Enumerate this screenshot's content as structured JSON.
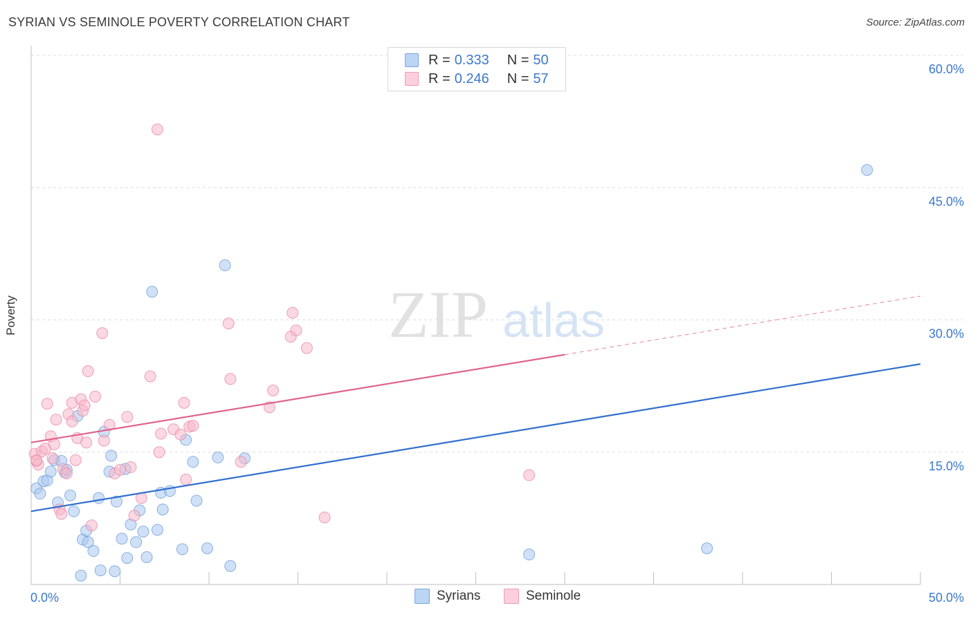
{
  "header": {
    "title": "SYRIAN VS SEMINOLE POVERTY CORRELATION CHART",
    "source": "Source: ZipAtlas.com"
  },
  "watermark": {
    "zip": "ZIP",
    "atlas": "atlas"
  },
  "legend_stats": {
    "r_label": "R =",
    "n_label": "N =",
    "syrians": {
      "r": "0.333",
      "n": "50",
      "color": "#a9c8f0"
    },
    "seminole": {
      "r": "0.246",
      "n": "57",
      "color": "#f7b8ca"
    }
  },
  "bottom_legend": {
    "syrians": "Syrians",
    "seminole": "Seminole"
  },
  "chart_data": {
    "type": "scatter",
    "title": "SYRIAN VS SEMINOLE POVERTY CORRELATION CHART",
    "xlabel": "",
    "ylabel": "Poverty",
    "xlim": [
      0,
      50
    ],
    "ylim": [
      0,
      60
    ],
    "x_tick_labels": [
      "0.0%",
      "50.0%"
    ],
    "y_tick_labels": [
      "15.0%",
      "30.0%",
      "45.0%",
      "60.0%"
    ],
    "y_ticks": [
      15,
      30,
      45,
      60
    ],
    "grid": true,
    "series": [
      {
        "name": "Syrians",
        "color": "#a9c8f0",
        "edge": "#6f9fd8",
        "line_color": "#2f6fcf",
        "trend": {
          "x": [
            0,
            50
          ],
          "y": [
            8.3,
            25.0
          ],
          "dashed_from": null
        },
        "points": [
          [
            0.3,
            10.9
          ],
          [
            0.5,
            10.3
          ],
          [
            0.7,
            11.7
          ],
          [
            0.9,
            11.8
          ],
          [
            1.1,
            12.8
          ],
          [
            1.3,
            14.1
          ],
          [
            1.5,
            9.3
          ],
          [
            1.7,
            14.0
          ],
          [
            1.9,
            12.7
          ],
          [
            2.0,
            13.0
          ],
          [
            2.2,
            10.1
          ],
          [
            2.4,
            8.3
          ],
          [
            2.6,
            19.1
          ],
          [
            2.8,
            1.0
          ],
          [
            2.9,
            5.1
          ],
          [
            3.1,
            6.1
          ],
          [
            3.2,
            4.8
          ],
          [
            3.5,
            3.8
          ],
          [
            3.8,
            9.8
          ],
          [
            3.9,
            1.6
          ],
          [
            4.1,
            17.3
          ],
          [
            4.4,
            12.8
          ],
          [
            4.5,
            14.6
          ],
          [
            4.7,
            1.5
          ],
          [
            4.8,
            9.4
          ],
          [
            5.1,
            5.2
          ],
          [
            5.3,
            13.1
          ],
          [
            5.4,
            3.0
          ],
          [
            5.6,
            6.8
          ],
          [
            5.9,
            4.8
          ],
          [
            6.1,
            8.4
          ],
          [
            6.3,
            6.0
          ],
          [
            6.5,
            3.1
          ],
          [
            6.8,
            33.2
          ],
          [
            7.1,
            6.2
          ],
          [
            7.3,
            10.4
          ],
          [
            7.4,
            8.5
          ],
          [
            7.8,
            10.6
          ],
          [
            8.5,
            4.0
          ],
          [
            8.7,
            16.4
          ],
          [
            9.1,
            13.9
          ],
          [
            9.3,
            9.5
          ],
          [
            9.9,
            4.1
          ],
          [
            10.5,
            14.4
          ],
          [
            10.9,
            36.2
          ],
          [
            11.2,
            2.1
          ],
          [
            12.0,
            14.3
          ],
          [
            28.0,
            3.4
          ],
          [
            38.0,
            4.1
          ],
          [
            47.0,
            47.0
          ]
        ]
      },
      {
        "name": "Seminole",
        "color": "#f7b8ca",
        "edge": "#e98aa8",
        "line_color": "#e0638d",
        "trend": {
          "x": [
            0,
            50
          ],
          "y": [
            16.1,
            32.7
          ],
          "dashed_from": 30
        },
        "points": [
          [
            0.2,
            14.8
          ],
          [
            0.3,
            14.0
          ],
          [
            0.4,
            13.6
          ],
          [
            0.6,
            15.1
          ],
          [
            0.8,
            15.4
          ],
          [
            0.9,
            20.5
          ],
          [
            1.1,
            16.8
          ],
          [
            1.2,
            14.3
          ],
          [
            1.3,
            15.9
          ],
          [
            1.4,
            18.7
          ],
          [
            1.6,
            8.5
          ],
          [
            1.7,
            8.0
          ],
          [
            1.8,
            13.1
          ],
          [
            2.0,
            12.6
          ],
          [
            2.1,
            19.3
          ],
          [
            2.3,
            18.5
          ],
          [
            2.3,
            20.6
          ],
          [
            2.5,
            14.1
          ],
          [
            2.6,
            16.6
          ],
          [
            2.8,
            21.0
          ],
          [
            2.9,
            19.7
          ],
          [
            3.0,
            20.3
          ],
          [
            3.1,
            16.1
          ],
          [
            3.2,
            24.2
          ],
          [
            3.4,
            6.7
          ],
          [
            3.6,
            21.3
          ],
          [
            4.0,
            28.5
          ],
          [
            4.1,
            16.3
          ],
          [
            4.4,
            18.1
          ],
          [
            4.7,
            12.6
          ],
          [
            5.0,
            13.0
          ],
          [
            5.4,
            19.0
          ],
          [
            5.6,
            13.3
          ],
          [
            5.8,
            7.8
          ],
          [
            6.2,
            9.8
          ],
          [
            6.7,
            23.6
          ],
          [
            7.1,
            51.6
          ],
          [
            7.2,
            15.0
          ],
          [
            7.3,
            17.1
          ],
          [
            8.0,
            17.6
          ],
          [
            8.4,
            17.0
          ],
          [
            8.6,
            20.6
          ],
          [
            8.7,
            11.9
          ],
          [
            8.9,
            17.9
          ],
          [
            9.1,
            18.0
          ],
          [
            11.1,
            29.6
          ],
          [
            11.2,
            23.3
          ],
          [
            11.8,
            13.9
          ],
          [
            13.4,
            20.1
          ],
          [
            13.6,
            22.0
          ],
          [
            14.6,
            28.1
          ],
          [
            14.7,
            30.8
          ],
          [
            14.9,
            28.8
          ],
          [
            15.5,
            26.8
          ],
          [
            16.5,
            7.6
          ],
          [
            28.0,
            12.4
          ],
          [
            0.3,
            14.1
          ]
        ]
      }
    ]
  }
}
